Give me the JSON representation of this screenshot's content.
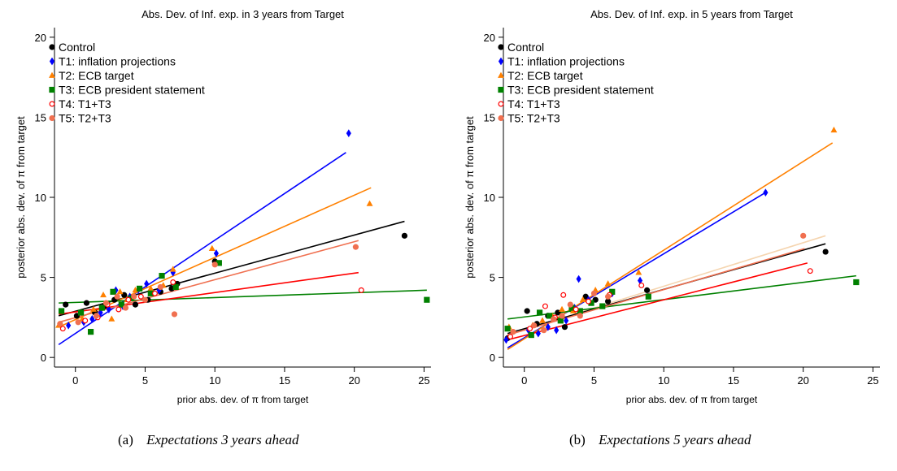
{
  "colors": {
    "Control": "#000000",
    "T1": "#0000ff",
    "T2": "#ff8000",
    "T3": "#008000",
    "T4": "#ff0000",
    "T5": "#f07050",
    "extra_fit": "#f5d5b0"
  },
  "chart_data": [
    {
      "type": "scatter",
      "title": "Abs. Dev. of Inf. exp. in 3 years from Target",
      "xlabel": "prior abs. dev. of π from target",
      "ylabel": "posterior abs. dev. of π from target",
      "xlim": [
        -1.5,
        25.5
      ],
      "ylim": [
        -0.6,
        20.6
      ],
      "xticks": [
        0,
        5,
        10,
        15,
        20,
        25
      ],
      "yticks": [
        0,
        5,
        10,
        15,
        20
      ],
      "legend_position": "top-left",
      "caption_label": "(a)",
      "caption_text": "Expectations 3 years ahead",
      "series": [
        {
          "name": "Control",
          "key": "Control",
          "marker": "circle",
          "points": [
            [
              -0.7,
              3.3
            ],
            [
              0.1,
              2.6
            ],
            [
              0.8,
              3.4
            ],
            [
              1.4,
              2.8
            ],
            [
              2.1,
              3.2
            ],
            [
              2.8,
              3.6
            ],
            [
              3.5,
              3.9
            ],
            [
              4.3,
              3.3
            ],
            [
              5.2,
              3.6
            ],
            [
              6.1,
              4.1
            ],
            [
              6.9,
              4.3
            ],
            [
              7.3,
              4.6
            ],
            [
              10.0,
              6.0
            ],
            [
              23.6,
              7.6
            ]
          ],
          "fit": [
            [
              -1.2,
              2.6
            ],
            [
              23.6,
              8.5
            ]
          ]
        },
        {
          "name": "T1: inflation projections",
          "key": "T1",
          "marker": "diamond",
          "points": [
            [
              -0.5,
              2.0
            ],
            [
              0.6,
              2.2
            ],
            [
              1.2,
              2.4
            ],
            [
              1.8,
              2.8
            ],
            [
              2.4,
              3.0
            ],
            [
              2.9,
              4.2
            ],
            [
              3.4,
              3.2
            ],
            [
              3.9,
              3.8
            ],
            [
              4.5,
              4.2
            ],
            [
              5.1,
              4.6
            ],
            [
              6.0,
              4.2
            ],
            [
              7.0,
              5.3
            ],
            [
              10.1,
              6.5
            ],
            [
              19.6,
              14.0
            ]
          ],
          "fit": [
            [
              -1.2,
              0.8
            ],
            [
              19.4,
              12.8
            ]
          ]
        },
        {
          "name": "T2: ECB target",
          "key": "T2",
          "marker": "triangle",
          "points": [
            [
              -1.2,
              2.0
            ],
            [
              0.5,
              2.4
            ],
            [
              1.3,
              3.0
            ],
            [
              2.0,
              3.9
            ],
            [
              2.6,
              2.4
            ],
            [
              3.2,
              4.1
            ],
            [
              3.7,
              3.6
            ],
            [
              4.3,
              4.2
            ],
            [
              5.4,
              4.3
            ],
            [
              6.3,
              4.5
            ],
            [
              7.0,
              5.5
            ],
            [
              9.8,
              6.8
            ],
            [
              21.1,
              9.6
            ]
          ],
          "fit": [
            [
              -1.2,
              1.9
            ],
            [
              21.2,
              10.6
            ]
          ]
        },
        {
          "name": "T3: ECB president statement",
          "key": "T3",
          "marker": "square",
          "points": [
            [
              -1.0,
              2.9
            ],
            [
              0.4,
              2.8
            ],
            [
              1.1,
              1.6
            ],
            [
              1.9,
              3.1
            ],
            [
              2.7,
              4.1
            ],
            [
              3.3,
              3.3
            ],
            [
              4.0,
              3.7
            ],
            [
              4.6,
              4.3
            ],
            [
              5.4,
              4.0
            ],
            [
              6.2,
              5.1
            ],
            [
              7.2,
              4.4
            ],
            [
              10.3,
              5.9
            ],
            [
              25.2,
              3.6
            ]
          ],
          "fit": [
            [
              -1.2,
              3.4
            ],
            [
              25.2,
              4.2
            ]
          ]
        },
        {
          "name": "T4: T1+T3",
          "key": "T4",
          "marker": "hollow-circle",
          "points": [
            [
              -0.9,
              1.8
            ],
            [
              0.7,
              2.3
            ],
            [
              1.6,
              2.5
            ],
            [
              2.3,
              3.3
            ],
            [
              3.1,
              3.0
            ],
            [
              3.8,
              3.6
            ],
            [
              4.7,
              3.8
            ],
            [
              5.7,
              4.0
            ],
            [
              7.0,
              4.7
            ],
            [
              20.5,
              4.2
            ]
          ],
          "fit": [
            [
              -1.2,
              2.7
            ],
            [
              20.3,
              5.3
            ]
          ]
        },
        {
          "name": "T5: T2+T3",
          "key": "T5",
          "marker": "circle",
          "points": [
            [
              -1.1,
              2.1
            ],
            [
              0.2,
              2.2
            ],
            [
              1.5,
              2.6
            ],
            [
              2.2,
              3.4
            ],
            [
              3.0,
              3.8
            ],
            [
              3.6,
              3.1
            ],
            [
              4.2,
              3.8
            ],
            [
              5.0,
              3.6
            ],
            [
              6.1,
              4.4
            ],
            [
              7.1,
              2.7
            ],
            [
              10.0,
              5.8
            ],
            [
              20.1,
              6.9
            ]
          ],
          "fit": [
            [
              -1.2,
              2.2
            ],
            [
              20.3,
              7.3
            ]
          ]
        }
      ]
    },
    {
      "type": "scatter",
      "title": "Abs. Dev. of Inf. exp. in 5 years from Target",
      "xlabel": "prior abs. dev. of π from target",
      "ylabel": "posterior abs. dev. of π from target",
      "xlim": [
        -1.5,
        25.5
      ],
      "ylim": [
        -0.6,
        20.6
      ],
      "xticks": [
        0,
        5,
        10,
        15,
        20,
        25
      ],
      "yticks": [
        0,
        5,
        10,
        15,
        20
      ],
      "legend_position": "top-left",
      "caption_label": "(b)",
      "caption_text": "Expectations 5 years ahead",
      "series": [
        {
          "name": "Control",
          "key": "Control",
          "marker": "circle",
          "points": [
            [
              -1.2,
              1.2
            ],
            [
              0.2,
              2.9
            ],
            [
              0.9,
              2.1
            ],
            [
              1.7,
              2.6
            ],
            [
              2.4,
              2.8
            ],
            [
              2.9,
              1.9
            ],
            [
              3.6,
              3.0
            ],
            [
              4.4,
              3.8
            ],
            [
              5.1,
              3.6
            ],
            [
              6.0,
              3.5
            ],
            [
              8.8,
              4.2
            ],
            [
              21.6,
              6.6
            ]
          ],
          "fit": [
            [
              -1.2,
              1.5
            ],
            [
              21.6,
              7.1
            ]
          ]
        },
        {
          "name": "T1: inflation projections",
          "key": "T1",
          "marker": "diamond",
          "points": [
            [
              -1.3,
              1.1
            ],
            [
              0.3,
              1.7
            ],
            [
              1.0,
              1.5
            ],
            [
              1.7,
              1.9
            ],
            [
              2.3,
              1.7
            ],
            [
              3.0,
              2.3
            ],
            [
              3.6,
              3.1
            ],
            [
              3.9,
              4.9
            ],
            [
              4.6,
              3.6
            ],
            [
              6.3,
              4.0
            ],
            [
              8.3,
              4.8
            ],
            [
              17.3,
              10.3
            ]
          ],
          "fit": [
            [
              -1.2,
              0.6
            ],
            [
              17.3,
              10.3
            ]
          ]
        },
        {
          "name": "T2: ECB target",
          "key": "T2",
          "marker": "triangle",
          "points": [
            [
              -1.1,
              1.9
            ],
            [
              0.6,
              2.0
            ],
            [
              1.3,
              2.3
            ],
            [
              2.0,
              2.6
            ],
            [
              2.7,
              3.0
            ],
            [
              3.5,
              2.9
            ],
            [
              4.2,
              3.6
            ],
            [
              5.1,
              4.2
            ],
            [
              6.0,
              4.6
            ],
            [
              8.2,
              5.3
            ],
            [
              22.2,
              14.2
            ]
          ],
          "fit": [
            [
              -1.2,
              0.5
            ],
            [
              22.1,
              13.4
            ]
          ]
        },
        {
          "name": "T3: ECB president statement",
          "key": "T3",
          "marker": "square",
          "points": [
            [
              -1.2,
              1.8
            ],
            [
              0.5,
              1.4
            ],
            [
              1.1,
              2.8
            ],
            [
              1.8,
              2.6
            ],
            [
              2.6,
              2.3
            ],
            [
              3.4,
              3.1
            ],
            [
              4.0,
              2.9
            ],
            [
              4.8,
              3.4
            ],
            [
              5.6,
              3.2
            ],
            [
              6.3,
              4.1
            ],
            [
              8.9,
              3.8
            ],
            [
              23.8,
              4.7
            ]
          ],
          "fit": [
            [
              -1.2,
              2.4
            ],
            [
              23.8,
              5.1
            ]
          ]
        },
        {
          "name": "T4: T1+T3",
          "key": "T4",
          "marker": "hollow-circle",
          "points": [
            [
              -1.0,
              1.3
            ],
            [
              0.4,
              1.8
            ],
            [
              1.5,
              3.2
            ],
            [
              2.2,
              2.5
            ],
            [
              2.8,
              3.9
            ],
            [
              3.7,
              3.0
            ],
            [
              4.6,
              3.5
            ],
            [
              6.1,
              3.9
            ],
            [
              8.4,
              4.5
            ],
            [
              20.5,
              5.4
            ]
          ],
          "fit": [
            [
              -1.2,
              1.1
            ],
            [
              20.3,
              5.9
            ]
          ]
        },
        {
          "name": "T5: T2+T3",
          "key": "T5",
          "marker": "circle",
          "points": [
            [
              -0.8,
              1.6
            ],
            [
              0.7,
              2.0
            ],
            [
              1.4,
              1.7
            ],
            [
              2.1,
              2.4
            ],
            [
              2.7,
              2.6
            ],
            [
              3.3,
              3.3
            ],
            [
              4.0,
              2.6
            ],
            [
              5.0,
              4.0
            ],
            [
              6.0,
              3.8
            ],
            [
              20.0,
              7.6
            ]
          ],
          "fit": [
            [
              -1.2,
              1.4
            ],
            [
              20.1,
              6.8
            ]
          ]
        }
      ],
      "extra_fit": [
        [
          -1.2,
          1.4
        ],
        [
          21.6,
          7.6
        ]
      ]
    }
  ]
}
